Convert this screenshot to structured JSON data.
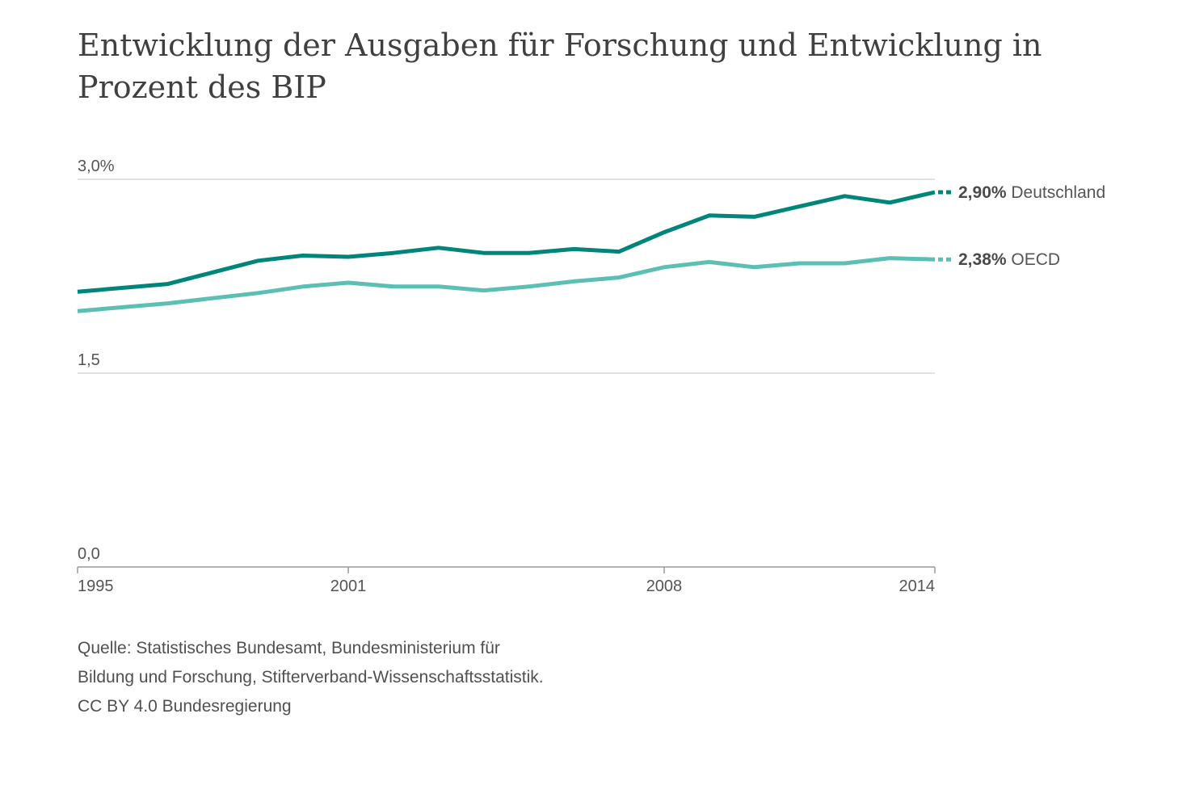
{
  "title": "Entwicklung der Ausgaben für Forschung und Entwicklung in Prozent des BIP",
  "source": {
    "line1": "Quelle: Statistisches Bundesamt, Bundesministerium für",
    "line2": "Bildung und Forschung, Stifterverband-Wissenschaftsstatistik.",
    "line3": "CC BY 4.0 Bundesregierung"
  },
  "chart_data": {
    "type": "line",
    "title": "Entwicklung der Ausgaben für Forschung und Entwicklung in Prozent des BIP",
    "xlabel": "",
    "ylabel": "",
    "x": [
      1995,
      1996,
      1997,
      1998,
      1999,
      2000,
      2001,
      2002,
      2003,
      2004,
      2005,
      2006,
      2007,
      2008,
      2009,
      2010,
      2011,
      2012,
      2013,
      2014
    ],
    "xlim": [
      1995,
      2014
    ],
    "ylim": [
      0,
      3.0
    ],
    "x_ticks": [
      "1995",
      "2001",
      "2008",
      "2014"
    ],
    "y_ticks": [
      {
        "value": 0,
        "label": "0,0"
      },
      {
        "value": 1.5,
        "label": "1,5"
      },
      {
        "value": 3.0,
        "label": "3,0%"
      }
    ],
    "grid": "horizontal",
    "legend": "direct labels at right end",
    "series": [
      {
        "name": "Deutschland",
        "end_label": "2,90%",
        "color": "#00857a",
        "values": [
          2.13,
          2.16,
          2.19,
          2.28,
          2.37,
          2.41,
          2.4,
          2.43,
          2.47,
          2.43,
          2.43,
          2.46,
          2.44,
          2.59,
          2.72,
          2.71,
          2.79,
          2.87,
          2.82,
          2.9
        ]
      },
      {
        "name": "OECD",
        "end_label": "2,38%",
        "color": "#5bbfb3",
        "values": [
          1.98,
          2.01,
          2.04,
          2.08,
          2.12,
          2.17,
          2.2,
          2.17,
          2.17,
          2.14,
          2.17,
          2.21,
          2.24,
          2.32,
          2.36,
          2.32,
          2.35,
          2.35,
          2.39,
          2.38
        ]
      }
    ]
  }
}
